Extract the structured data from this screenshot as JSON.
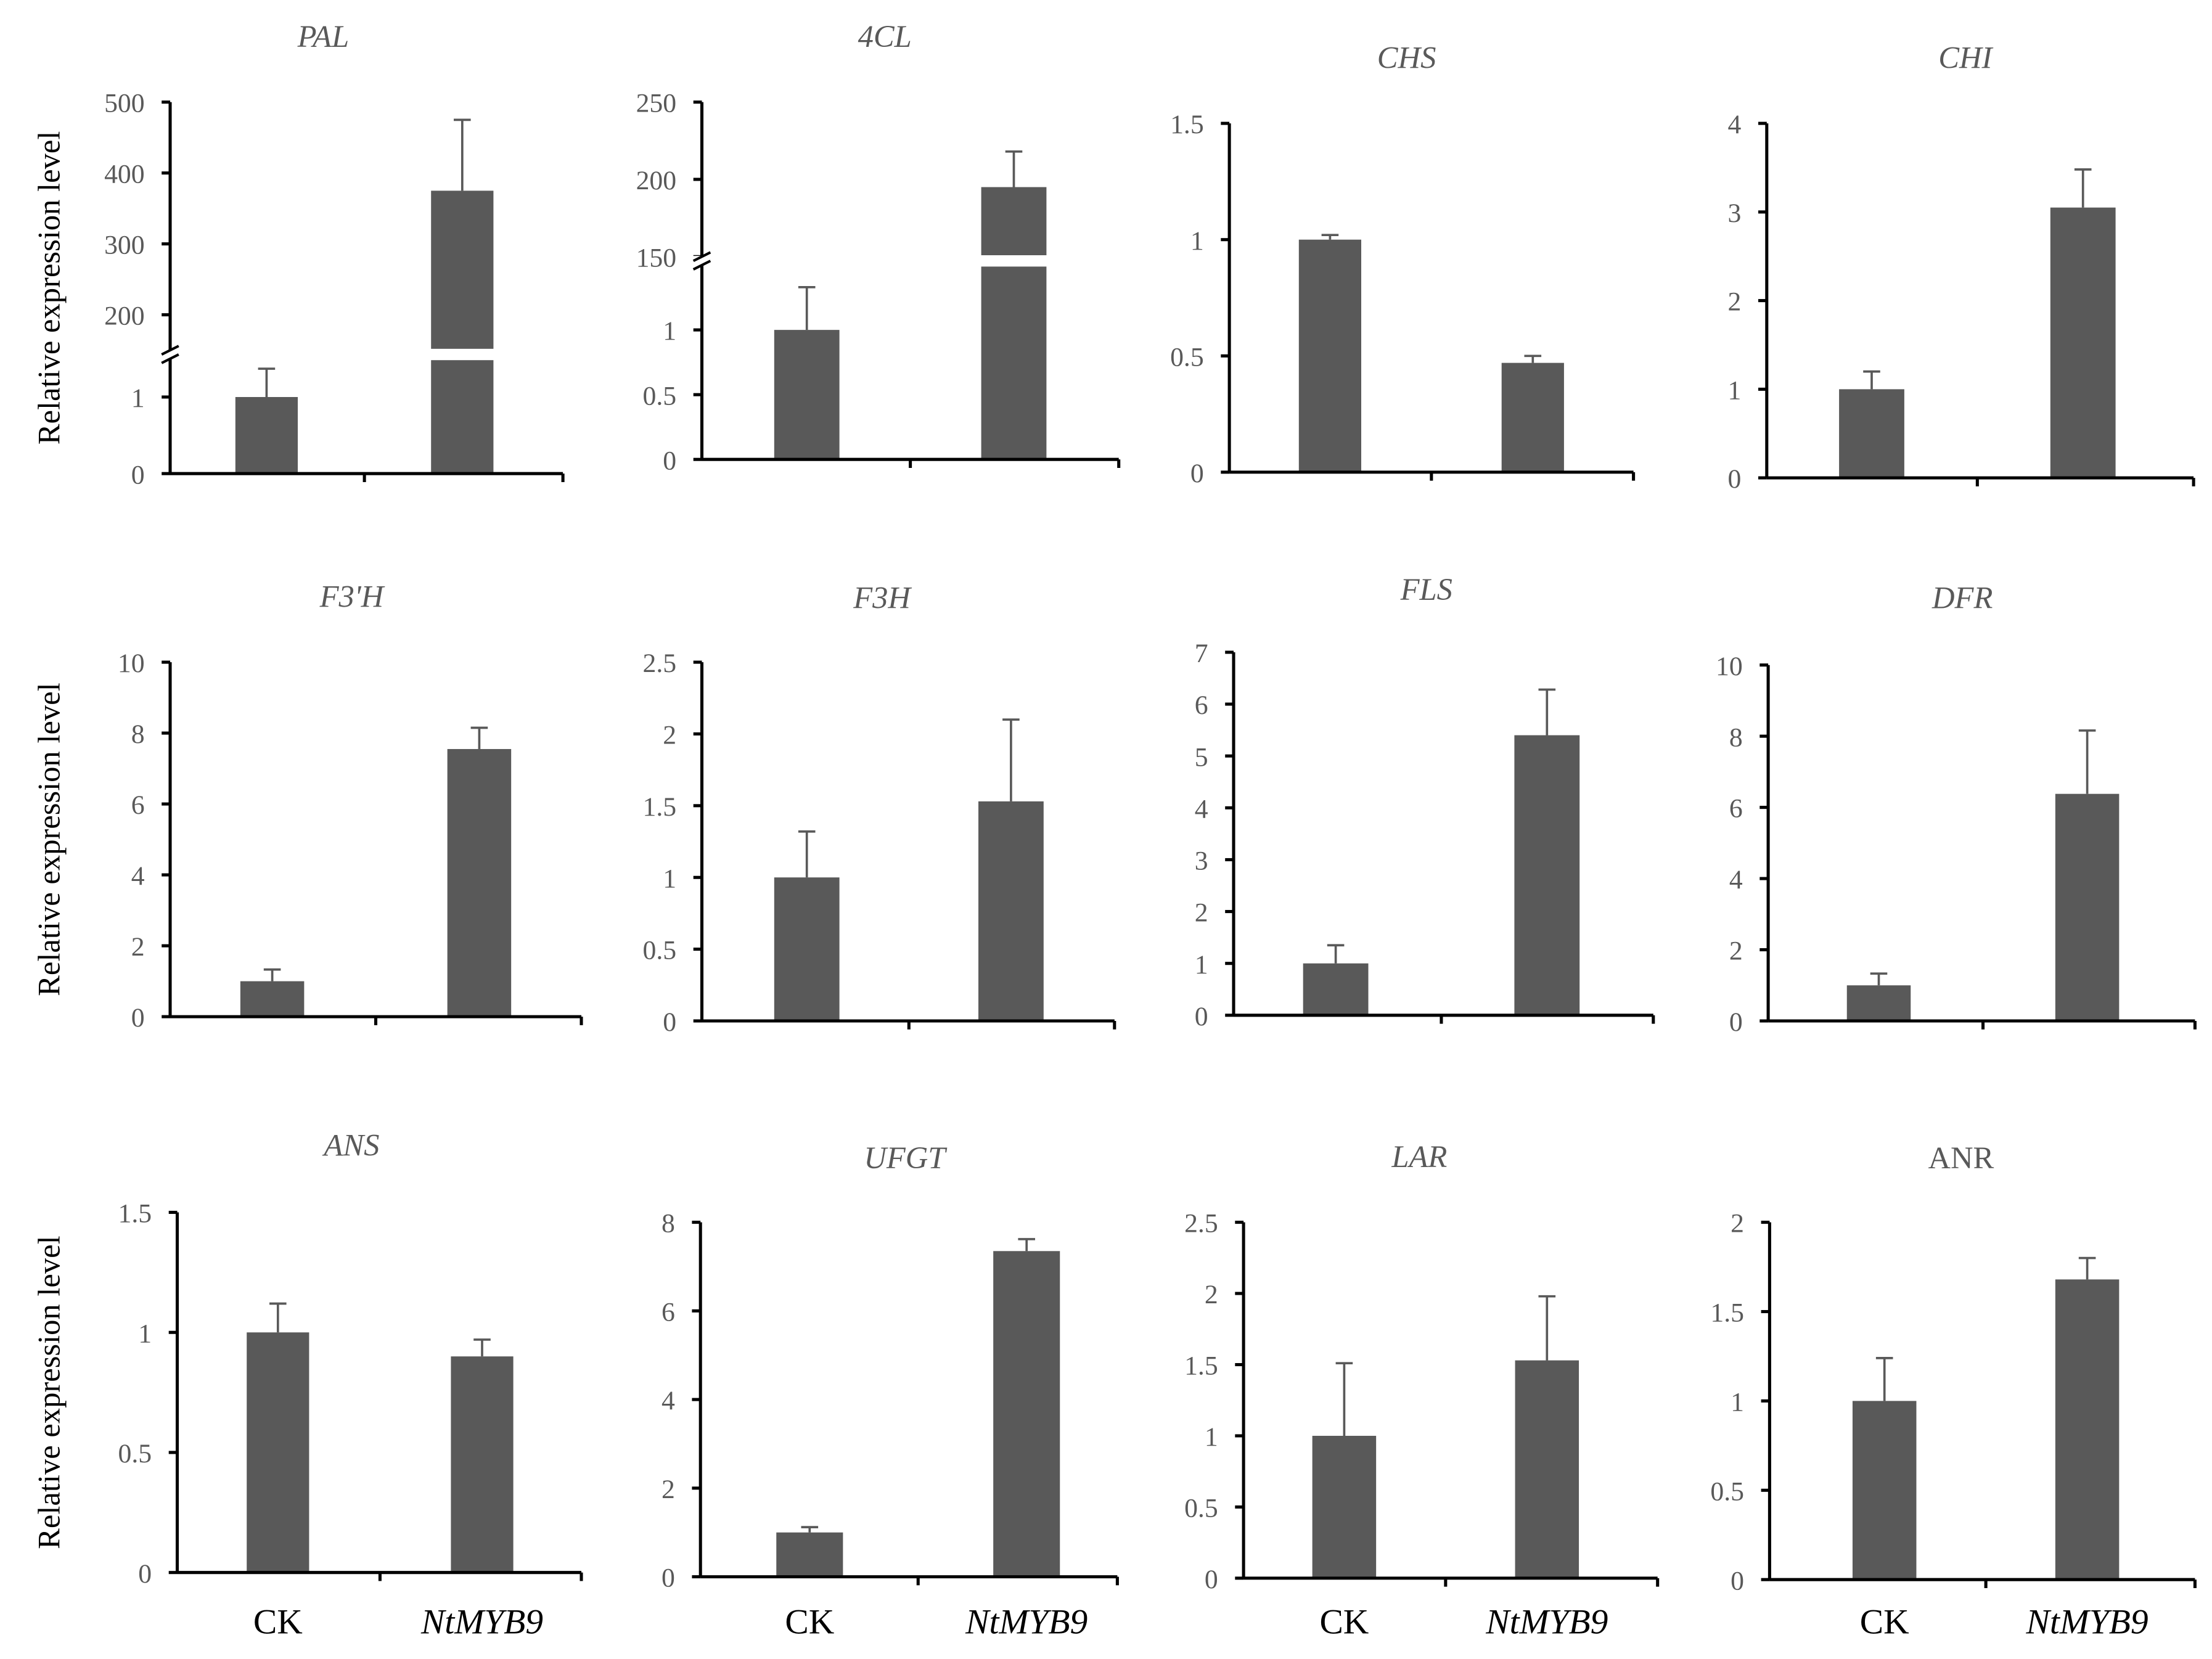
{
  "figure": {
    "ylabel": "Relative expression level",
    "categories": [
      "CK",
      "NtMYB9"
    ],
    "colors": {
      "bar": "#595959",
      "axis": "#000000",
      "text": "#595959",
      "background": "#ffffff"
    }
  },
  "chart_data": [
    {
      "type": "bar",
      "title": "PAL",
      "title_italic": true,
      "categories": [
        "CK",
        "NtMYB9"
      ],
      "values": [
        1.0,
        375
      ],
      "errors": [
        0.37,
        100
      ],
      "broken_axis": true,
      "lower_range": [
        0,
        1.5
      ],
      "upper_range": [
        150,
        500
      ],
      "lower_ticks": [
        0,
        1
      ],
      "lower_tick_labels": [
        "0",
        "1"
      ],
      "upper_ticks": [
        200,
        300,
        400,
        500
      ],
      "upper_tick_labels": [
        "200",
        "300",
        "400",
        "500"
      ],
      "ylabel": "Relative expression level",
      "xlabel": ""
    },
    {
      "type": "bar",
      "title": "4CL",
      "title_italic": true,
      "categories": [
        "CK",
        "NtMYB9"
      ],
      "values": [
        1.0,
        195
      ],
      "errors": [
        0.33,
        23
      ],
      "broken_axis": true,
      "lower_range": [
        0,
        1.5
      ],
      "upper_range": [
        150,
        250
      ],
      "lower_ticks": [
        0,
        0.5,
        1
      ],
      "lower_tick_labels": [
        "0",
        "0.5",
        "1"
      ],
      "upper_ticks": [
        150,
        200,
        250
      ],
      "upper_tick_labels": [
        "150",
        "200",
        "250"
      ],
      "ylabel": "",
      "xlabel": ""
    },
    {
      "type": "bar",
      "title": "CHS",
      "title_italic": true,
      "categories": [
        "CK",
        "NtMYB9"
      ],
      "values": [
        1.0,
        0.47
      ],
      "errors": [
        0.02,
        0.03
      ],
      "ylim": [
        0,
        1.5
      ],
      "ticks": [
        0,
        0.5,
        1,
        1.5
      ],
      "tick_labels": [
        "0",
        "0.5",
        "1",
        "1.5"
      ],
      "ylabel": "",
      "xlabel": ""
    },
    {
      "type": "bar",
      "title": "CHI",
      "title_italic": true,
      "categories": [
        "CK",
        "NtMYB9"
      ],
      "values": [
        1.0,
        3.05
      ],
      "errors": [
        0.2,
        0.43
      ],
      "ylim": [
        0,
        4
      ],
      "ticks": [
        0,
        1,
        2,
        3,
        4
      ],
      "tick_labels": [
        "0",
        "1",
        "2",
        "3",
        "4"
      ],
      "ylabel": "",
      "xlabel": ""
    },
    {
      "type": "bar",
      "title": "F3'H",
      "title_italic": true,
      "categories": [
        "CK",
        "NtMYB9"
      ],
      "values": [
        1.0,
        7.55
      ],
      "errors": [
        0.33,
        0.6
      ],
      "ylim": [
        0,
        10
      ],
      "ticks": [
        0,
        2,
        4,
        6,
        8,
        10
      ],
      "tick_labels": [
        "0",
        "2",
        "4",
        "6",
        "8",
        "10"
      ],
      "ylabel": "Relative expression level",
      "xlabel": ""
    },
    {
      "type": "bar",
      "title": "F3H",
      "title_italic": true,
      "categories": [
        "CK",
        "NtMYB9"
      ],
      "values": [
        1.0,
        1.53
      ],
      "errors": [
        0.32,
        0.57
      ],
      "ylim": [
        0,
        2.5
      ],
      "ticks": [
        0,
        0.5,
        1,
        1.5,
        2,
        2.5
      ],
      "tick_labels": [
        "0",
        "0.5",
        "1",
        "1.5",
        "2",
        "2.5"
      ],
      "ylabel": "",
      "xlabel": ""
    },
    {
      "type": "bar",
      "title": "FLS",
      "title_italic": true,
      "categories": [
        "CK",
        "NtMYB9"
      ],
      "values": [
        1.0,
        5.4
      ],
      "errors": [
        0.35,
        0.88
      ],
      "ylim": [
        0,
        7
      ],
      "ticks": [
        0,
        1,
        2,
        3,
        4,
        5,
        6,
        7
      ],
      "tick_labels": [
        "0",
        "1",
        "2",
        "3",
        "4",
        "5",
        "6",
        "7"
      ],
      "ylabel": "",
      "xlabel": ""
    },
    {
      "type": "bar",
      "title": "DFR",
      "title_italic": true,
      "categories": [
        "CK",
        "NtMYB9"
      ],
      "values": [
        1.0,
        6.38
      ],
      "errors": [
        0.33,
        1.78
      ],
      "ylim": [
        0,
        10
      ],
      "ticks": [
        0,
        2,
        4,
        6,
        8,
        10
      ],
      "tick_labels": [
        "0",
        "2",
        "4",
        "6",
        "8",
        "10"
      ],
      "ylabel": "",
      "xlabel": ""
    },
    {
      "type": "bar",
      "title": "ANS",
      "title_italic": true,
      "categories": [
        "CK",
        "NtMYB9"
      ],
      "values": [
        1.0,
        0.9
      ],
      "errors": [
        0.12,
        0.07
      ],
      "ylim": [
        0,
        1.5
      ],
      "ticks": [
        0,
        0.5,
        1,
        1.5
      ],
      "tick_labels": [
        "0",
        "0.5",
        "1",
        "1.5"
      ],
      "ylabel": "Relative expression level",
      "xlabel": ""
    },
    {
      "type": "bar",
      "title": "UFGT",
      "title_italic": true,
      "categories": [
        "CK",
        "NtMYB9"
      ],
      "values": [
        1.0,
        7.35
      ],
      "errors": [
        0.12,
        0.27
      ],
      "ylim": [
        0,
        8
      ],
      "ticks": [
        0,
        2,
        4,
        6,
        8
      ],
      "tick_labels": [
        "0",
        "2",
        "4",
        "6",
        "8"
      ],
      "ylabel": "",
      "xlabel": ""
    },
    {
      "type": "bar",
      "title": "LAR",
      "title_italic": true,
      "categories": [
        "CK",
        "NtMYB9"
      ],
      "values": [
        1.0,
        1.53
      ],
      "errors": [
        0.51,
        0.45
      ],
      "ylim": [
        0,
        2.5
      ],
      "ticks": [
        0,
        0.5,
        1,
        1.5,
        2,
        2.5
      ],
      "tick_labels": [
        "0",
        "0.5",
        "1",
        "1.5",
        "2",
        "2.5"
      ],
      "ylabel": "",
      "xlabel": ""
    },
    {
      "type": "bar",
      "title": "ANR",
      "title_italic": false,
      "categories": [
        "CK",
        "NtMYB9"
      ],
      "values": [
        1.0,
        1.68
      ],
      "errors": [
        0.24,
        0.12
      ],
      "ylim": [
        0,
        2
      ],
      "ticks": [
        0,
        0.5,
        1,
        1.5,
        2
      ],
      "tick_labels": [
        "0",
        "0.5",
        "1",
        "1.5",
        "2"
      ],
      "ylabel": "",
      "xlabel": ""
    }
  ]
}
